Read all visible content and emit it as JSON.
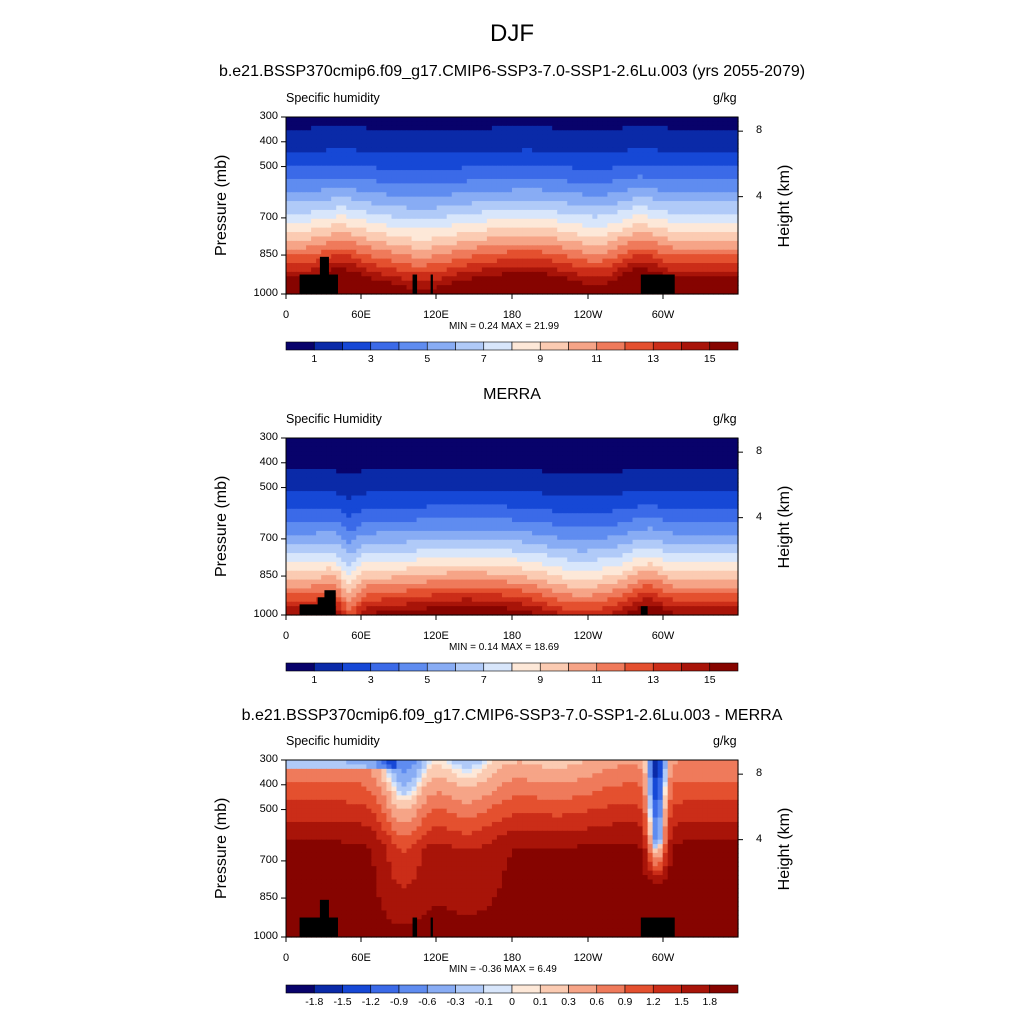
{
  "figure": {
    "title": "DJF"
  },
  "chart_data": [
    {
      "type": "heatmap",
      "title": "b.e21.BSSP370cmip6.f09_g17.CMIP6-SSP3-7.0-SSP1-2.6Lu.003 (yrs 2055-2079)",
      "left_label": "Specific humidity",
      "right_label": "g/kg",
      "ylabel": "Pressure (mb)",
      "y2label": "Height (km)",
      "x_ticks": [
        "0",
        "60E",
        "120E",
        "180",
        "120W",
        "60W"
      ],
      "y_ticks": [
        "300",
        "400",
        "500",
        "700",
        "850",
        "1000"
      ],
      "y2_ticks": [
        "8",
        "4"
      ],
      "min": "0.24",
      "max": "21.99",
      "minmax_text": "MIN =   0.24  MAX =  21.99",
      "colorbar_labels": [
        "1",
        "3",
        "5",
        "7",
        "9",
        "11",
        "13",
        "15"
      ]
    },
    {
      "type": "heatmap",
      "title": "MERRA",
      "left_label": "Specific Humidity",
      "right_label": "g/kg",
      "ylabel": "Pressure (mb)",
      "y2label": "Height (km)",
      "x_ticks": [
        "0",
        "60E",
        "120E",
        "180",
        "120W",
        "60W"
      ],
      "y_ticks": [
        "300",
        "400",
        "500",
        "700",
        "850",
        "1000"
      ],
      "y2_ticks": [
        "8",
        "4"
      ],
      "min": "0.14",
      "max": "18.69",
      "minmax_text": "MIN =   0.14  MAX =  18.69",
      "colorbar_labels": [
        "1",
        "3",
        "5",
        "7",
        "9",
        "11",
        "13",
        "15"
      ]
    },
    {
      "type": "heatmap",
      "title": "b.e21.BSSP370cmip6.f09_g17.CMIP6-SSP3-7.0-SSP1-2.6Lu.003 - MERRA",
      "left_label": "Specific humidity",
      "right_label": "g/kg",
      "ylabel": "Pressure (mb)",
      "y2label": "Height (km)",
      "x_ticks": [
        "0",
        "60E",
        "120E",
        "180",
        "120W",
        "60W"
      ],
      "y_ticks": [
        "300",
        "400",
        "500",
        "700",
        "850",
        "1000"
      ],
      "y2_ticks": [
        "8",
        "4"
      ],
      "min": "-0.36",
      "max": "6.49",
      "minmax_text": "MIN =  -0.36  MAX =   6.49",
      "colorbar_labels": [
        "-1.8",
        "-1.5",
        "-1.2",
        "-0.9",
        "-0.6",
        "-0.3",
        "-0.1",
        "0",
        "0.1",
        "0.3",
        "0.6",
        "0.9",
        "1.2",
        "1.5",
        "1.8"
      ]
    }
  ],
  "colors": {
    "seq16": [
      "#08026b",
      "#0a2aa8",
      "#1648d6",
      "#3b6ae8",
      "#5f8cf0",
      "#88acf4",
      "#b0caf8",
      "#d8e6fb",
      "#fde8d8",
      "#fbcbb2",
      "#f6a487",
      "#ef7a5b",
      "#e4502f",
      "#cb2d18",
      "#a81409",
      "#860400"
    ],
    "div16": [
      "#08026b",
      "#0a2aa8",
      "#1648d6",
      "#3b6ae8",
      "#5f8cf0",
      "#88acf4",
      "#b0caf8",
      "#d8e6fb",
      "#fde8d8",
      "#fbcbb2",
      "#f6a487",
      "#ef7a5b",
      "#e4502f",
      "#cb2d18",
      "#a81409",
      "#860400"
    ],
    "terrain": "#000000"
  }
}
